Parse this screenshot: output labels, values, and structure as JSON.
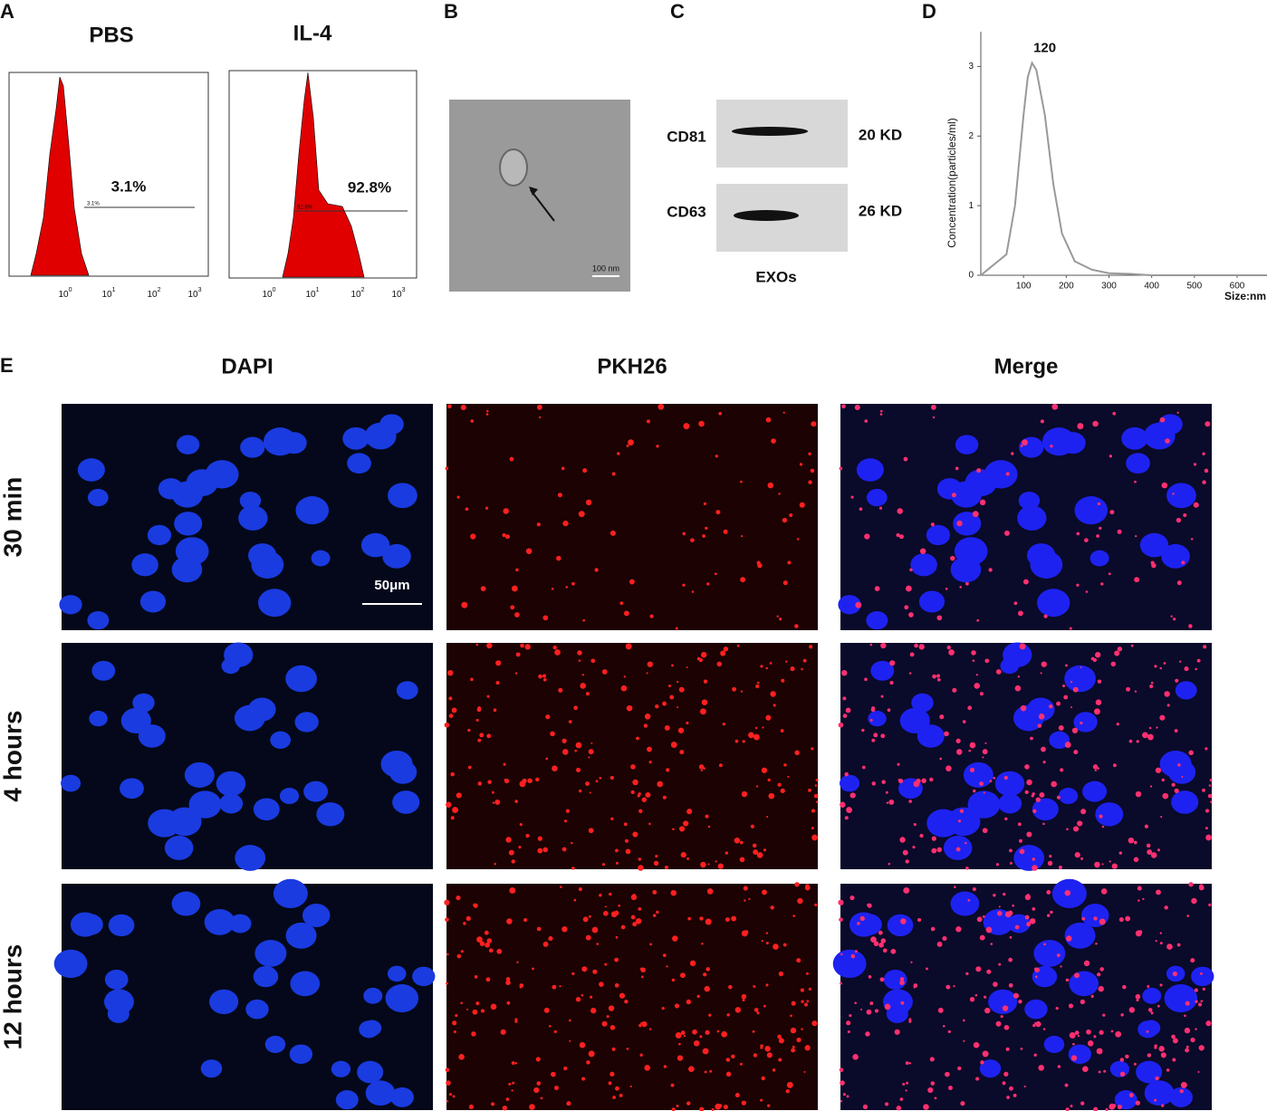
{
  "panels": {
    "a": {
      "letter": "A",
      "pbs": {
        "title": "PBS",
        "percent": "3.1%",
        "gate_label": "3.1%",
        "ticks": [
          {
            "base": "10",
            "exp": "0"
          },
          {
            "base": "10",
            "exp": "1"
          },
          {
            "base": "10",
            "exp": "2"
          },
          {
            "base": "10",
            "exp": "3"
          }
        ]
      },
      "il4": {
        "title": "IL-4",
        "percent": "92.8%",
        "gate_label": "92.8%",
        "ticks": [
          {
            "base": "10",
            "exp": "0"
          },
          {
            "base": "10",
            "exp": "1"
          },
          {
            "base": "10",
            "exp": "2"
          },
          {
            "base": "10",
            "exp": "3"
          }
        ]
      }
    },
    "b": {
      "letter": "B",
      "scale_bar": "100 nm"
    },
    "c": {
      "letter": "C",
      "bands": [
        {
          "name": "CD81",
          "size": "20 KD"
        },
        {
          "name": "CD63",
          "size": "26 KD"
        }
      ],
      "sample": "EXOs"
    },
    "d": {
      "letter": "D",
      "type": "line",
      "annotation": "120",
      "ylabel": "Concentration(particles/ml)",
      "xlabel": "Size:nm",
      "x": [
        0,
        20,
        40,
        60,
        80,
        100,
        110,
        120,
        130,
        150,
        170,
        190,
        220,
        260,
        300,
        350,
        400,
        500,
        600,
        670
      ],
      "values": [
        0,
        0.1,
        0.2,
        0.3,
        1.0,
        2.3,
        2.85,
        3.05,
        2.95,
        2.3,
        1.3,
        0.6,
        0.2,
        0.08,
        0.03,
        0.02,
        0,
        0,
        0,
        0
      ],
      "xlim": [
        0,
        670
      ],
      "ylim": [
        0,
        3.5
      ],
      "xticks": [
        100,
        200,
        300,
        400,
        500,
        600
      ],
      "yticks": [
        0,
        1,
        2,
        3
      ],
      "color": "#999999"
    },
    "e": {
      "letter": "E",
      "columns": [
        "DAPI",
        "PKH26",
        "Merge"
      ],
      "rows": [
        "30 min",
        "4 hours",
        "12 hours"
      ],
      "scale_bar": "50μm"
    }
  }
}
